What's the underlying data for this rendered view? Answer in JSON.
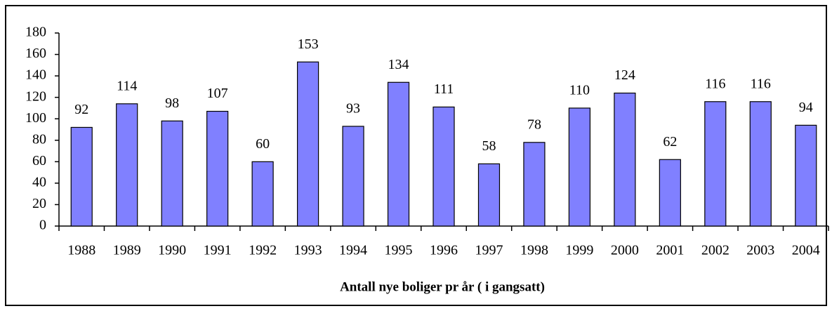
{
  "chart_data": {
    "type": "bar",
    "x_label": "Antall nye boliger pr år ( i gangsatt)",
    "categories": [
      "1988",
      "1989",
      "1990",
      "1991",
      "1992",
      "1993",
      "1994",
      "1995",
      "1996",
      "1997",
      "1998",
      "1999",
      "2000",
      "2001",
      "2002",
      "2003",
      "2004"
    ],
    "values": [
      92,
      114,
      98,
      107,
      60,
      153,
      93,
      134,
      111,
      58,
      78,
      110,
      124,
      62,
      116,
      116,
      94
    ],
    "color": "#8080ff",
    "ylim": [
      0,
      180
    ],
    "yticks": [
      0,
      20,
      40,
      60,
      80,
      100,
      120,
      140,
      160,
      180
    ],
    "grid": false
  }
}
